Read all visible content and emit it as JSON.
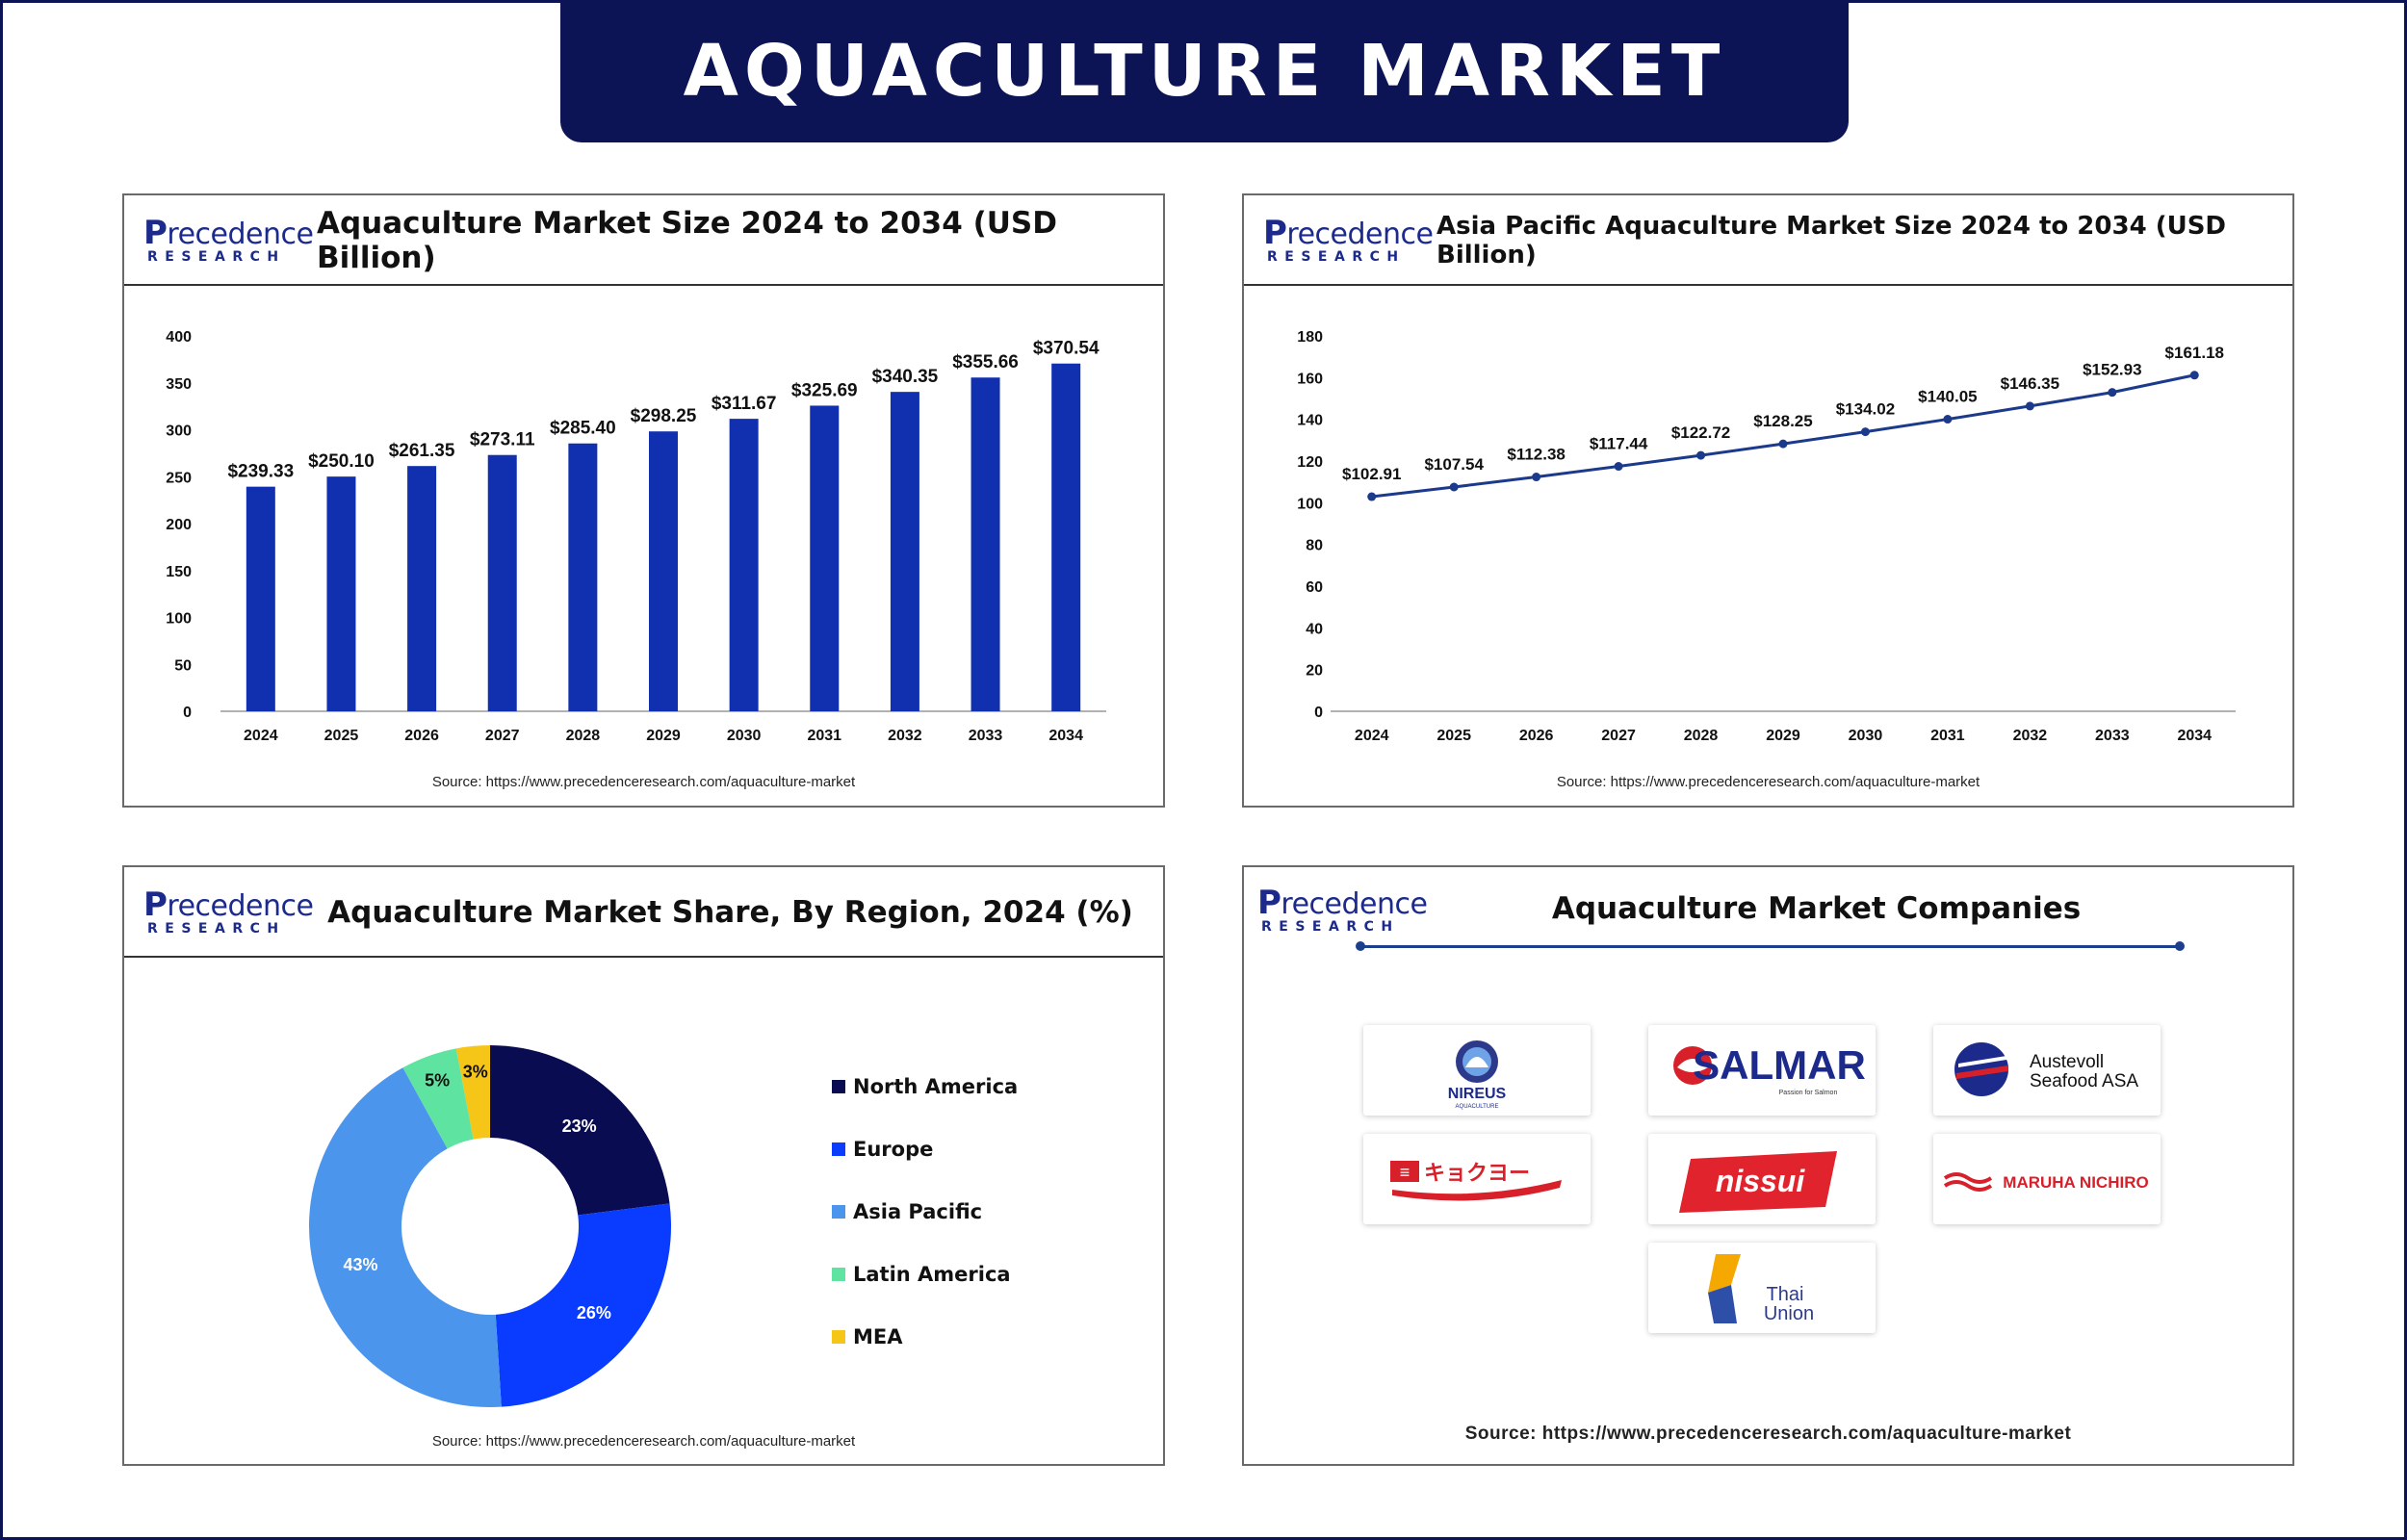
{
  "header": {
    "title": "AQUACULTURE MARKET"
  },
  "brand": {
    "logo_main": "recedence",
    "logo_initial": "P",
    "logo_sub": "RESEARCH",
    "navy": "#0c1456",
    "royal": "#1130b0"
  },
  "panels": {
    "market_size": {
      "title": "Aquaculture Market Size 2024 to 2034 (USD Billion)",
      "source": "Source: https://www.precedenceresearch.com/aquaculture-market"
    },
    "asia_pacific": {
      "title": "Asia Pacific Aquaculture Market Size 2024 to 2034 (USD Billion)",
      "source": "Source: https://www.precedenceresearch.com/aquaculture-market"
    },
    "region_share": {
      "title": "Aquaculture Market Share, By Region, 2024 (%)",
      "source": "Source: https://www.precedenceresearch.com/aquaculture-market"
    },
    "companies": {
      "title": "Aquaculture Market Companies",
      "source": "Source: https://www.precedenceresearch.com/aquaculture-market",
      "logos": [
        {
          "name": "NIREUS",
          "sub": "AQUACULTURE"
        },
        {
          "name": "SALMAR",
          "sub": "Passion for Salmon"
        },
        {
          "name": "Austevoll Seafood ASA",
          "line1": "Austevoll",
          "line2": "Seafood ASA"
        },
        {
          "name": "キョクヨー"
        },
        {
          "name": "nissui"
        },
        {
          "name": "MARUHA NICHIRO"
        },
        {
          "name": "Thai Union",
          "line1": "Thai",
          "line2": "Union"
        }
      ]
    }
  },
  "chart_data": [
    {
      "type": "bar",
      "categories": [
        "2024",
        "2025",
        "2026",
        "2027",
        "2028",
        "2029",
        "2030",
        "2031",
        "2032",
        "2033",
        "2034"
      ],
      "values": [
        239.33,
        250.1,
        261.35,
        273.11,
        285.4,
        298.25,
        311.67,
        325.69,
        340.35,
        355.66,
        370.54
      ],
      "data_labels": [
        "$239.33",
        "$250.10",
        "$261.35",
        "$273.11",
        "$285.40",
        "$298.25",
        "$311.67",
        "$325.69",
        "$340.35",
        "$355.66",
        "$370.54"
      ],
      "title": "Aquaculture Market Size 2024 to 2034 (USD Billion)",
      "ylim": [
        0,
        400
      ],
      "yticks": [
        0,
        50,
        100,
        150,
        200,
        250,
        300,
        350,
        400
      ],
      "color": "#1130b0",
      "grid": false
    },
    {
      "type": "line",
      "categories": [
        "2024",
        "2025",
        "2026",
        "2027",
        "2028",
        "2029",
        "2030",
        "2031",
        "2032",
        "2033",
        "2034"
      ],
      "values": [
        102.91,
        107.54,
        112.38,
        117.44,
        122.72,
        128.25,
        134.02,
        140.05,
        146.35,
        152.93,
        161.18
      ],
      "data_labels": [
        "$102.91",
        "$107.54",
        "$112.38",
        "$117.44",
        "$122.72",
        "$128.25",
        "$134.02",
        "$140.05",
        "$146.35",
        "$152.93",
        "$161.18"
      ],
      "title": "Asia Pacific Aquaculture Market Size 2024 to 2034 (USD Billion)",
      "ylim": [
        0,
        180
      ],
      "yticks": [
        0,
        20,
        40,
        60,
        80,
        100,
        120,
        140,
        160,
        180
      ],
      "color": "#1c3a8c",
      "grid": false
    },
    {
      "type": "pie",
      "donut": true,
      "title": "Aquaculture Market Share, By Region, 2024 (%)",
      "slices": [
        {
          "label": "North America",
          "value": 23,
          "text": "23%",
          "color": "#0a0c52",
          "text_color": "#ffffff"
        },
        {
          "label": "Europe",
          "value": 26,
          "text": "26%",
          "color": "#0a3cff",
          "text_color": "#ffffff"
        },
        {
          "label": "Asia Pacific",
          "value": 43,
          "text": "43%",
          "color": "#4b95ec",
          "text_color": "#ffffff"
        },
        {
          "label": "Latin America",
          "value": 5,
          "text": "5%",
          "color": "#5fe3a0",
          "text_color": "#111111"
        },
        {
          "label": "MEA",
          "value": 3,
          "text": "3%",
          "color": "#f5c518",
          "text_color": "#111111"
        }
      ],
      "legend_position": "right"
    }
  ]
}
